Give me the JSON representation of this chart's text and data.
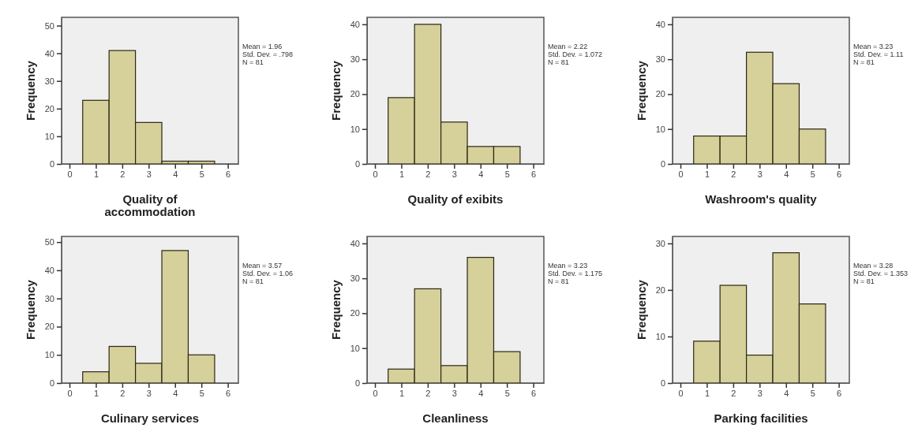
{
  "chart_data": [
    {
      "type": "histogram",
      "bins": [
        0.5,
        1.5,
        2.5,
        3.5,
        4.5,
        5.5
      ],
      "values": [
        23,
        41,
        15,
        1,
        1
      ],
      "color": "#d6d09a",
      "xlim": [
        -0.3,
        6.4
      ],
      "ylim": [
        0,
        53
      ],
      "xticks": [
        0,
        1,
        2,
        3,
        4,
        5,
        6
      ],
      "yticks": [
        0,
        10,
        20,
        30,
        40,
        50
      ],
      "xlabel": "Quality of accommodation",
      "ylabel": "Frequency",
      "annotations": [
        "Mean = 1.96",
        "Std. Dev. = .798",
        "N = 81"
      ]
    },
    {
      "type": "histogram",
      "bins": [
        0.5,
        1.5,
        2.5,
        3.5,
        4.5,
        5.5
      ],
      "values": [
        19,
        40,
        12,
        5,
        5
      ],
      "color": "#d6d09a",
      "xlim": [
        -0.3,
        6.4
      ],
      "ylim": [
        0,
        42
      ],
      "xticks": [
        0,
        1,
        2,
        3,
        4,
        5,
        6
      ],
      "yticks": [
        0,
        10,
        20,
        30,
        40
      ],
      "xlabel": "Quality of exibits",
      "ylabel": "Frequency",
      "annotations": [
        "Mean = 2.22",
        "Std. Dev. = 1.072",
        "N = 81"
      ]
    },
    {
      "type": "histogram",
      "bins": [
        0.5,
        1.5,
        2.5,
        3.5,
        4.5,
        5.5
      ],
      "values": [
        8,
        8,
        32,
        23,
        10
      ],
      "color": "#d6d09a",
      "xlim": [
        -0.3,
        6.4
      ],
      "ylim": [
        0,
        42
      ],
      "xticks": [
        0,
        1,
        2,
        3,
        4,
        5,
        6
      ],
      "yticks": [
        0,
        10,
        20,
        30,
        40
      ],
      "xlabel": "Washroom's quality",
      "ylabel": "Frequency",
      "annotations": [
        "Mean = 3.23",
        "Std. Dev. = 1.11",
        "N = 81"
      ]
    },
    {
      "type": "histogram",
      "bins": [
        0.5,
        1.5,
        2.5,
        3.5,
        4.5,
        5.5
      ],
      "values": [
        4,
        13,
        7,
        47,
        10
      ],
      "color": "#d6d09a",
      "xlim": [
        -0.3,
        6.4
      ],
      "ylim": [
        0,
        52
      ],
      "xticks": [
        0,
        1,
        2,
        3,
        4,
        5,
        6
      ],
      "yticks": [
        0,
        10,
        20,
        30,
        40,
        50
      ],
      "xlabel": "Culinary services",
      "ylabel": "Frequency",
      "annotations": [
        "Mean = 3.57",
        "Std. Dev. = 1.06",
        "N = 81"
      ]
    },
    {
      "type": "histogram",
      "bins": [
        0.5,
        1.5,
        2.5,
        3.5,
        4.5,
        5.5
      ],
      "values": [
        4,
        27,
        5,
        36,
        9
      ],
      "color": "#d6d09a",
      "xlim": [
        -0.3,
        6.4
      ],
      "ylim": [
        0,
        42
      ],
      "xticks": [
        0,
        1,
        2,
        3,
        4,
        5,
        6
      ],
      "yticks": [
        0,
        10,
        20,
        30,
        40
      ],
      "xlabel": "Cleanliness",
      "ylabel": "Frequency",
      "annotations": [
        "Mean = 3.23",
        "Std. Dev. = 1.175",
        "N = 81"
      ]
    },
    {
      "type": "histogram",
      "bins": [
        0.5,
        1.5,
        2.5,
        3.5,
        4.5,
        5.5
      ],
      "values": [
        9,
        21,
        6,
        28,
        17
      ],
      "color": "#d6d09a",
      "xlim": [
        -0.3,
        6.4
      ],
      "ylim": [
        0,
        31.5
      ],
      "xticks": [
        0,
        1,
        2,
        3,
        4,
        5,
        6
      ],
      "yticks": [
        0,
        10,
        20,
        30
      ],
      "xlabel": "Parking facilities",
      "ylabel": "Frequency",
      "annotations": [
        "Mean = 3.28",
        "Std. Dev. = 1.353",
        "N = 81"
      ]
    }
  ]
}
